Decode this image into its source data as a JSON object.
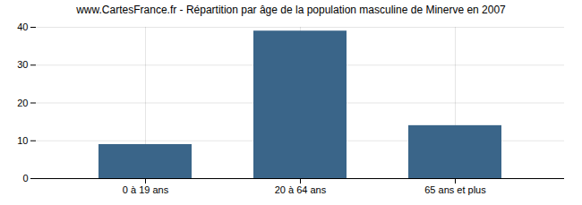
{
  "chart_data": {
    "type": "bar",
    "title": "www.CartesFrance.fr - Répartition par âge de la population masculine de Minerve en 2007",
    "categories": [
      "0 à 19 ans",
      "20 à 64 ans",
      "65 ans et plus"
    ],
    "values": [
      9,
      39,
      14
    ],
    "color": "#3a6589",
    "ylim": [
      0,
      40
    ],
    "yticks": [
      0,
      10,
      20,
      30,
      40
    ],
    "grid": true
  }
}
